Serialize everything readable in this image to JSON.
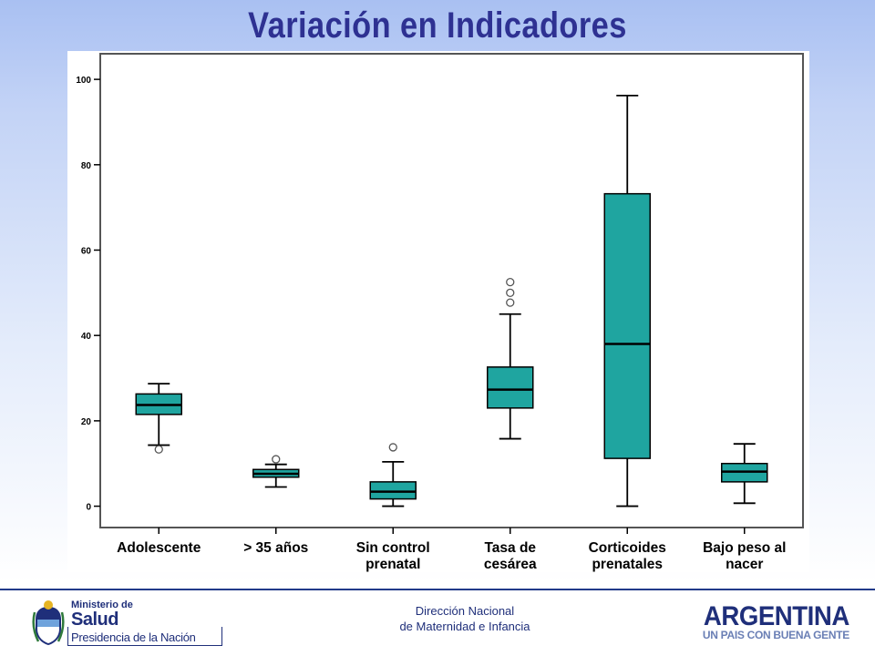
{
  "slide": {
    "title": "Variación en Indicadores",
    "footer_line1": "Dirección Nacional",
    "footer_line2": "de Maternidad e Infancia"
  },
  "logos": {
    "ministry_line1": "Ministerio de",
    "ministry_line2": "Salud",
    "ministry_line3": "Presidencia de la Nación",
    "argentina_word": "ARGENTINA",
    "argentina_slogan": "UN PAIS CON BUENA GENTE"
  },
  "colors": {
    "title": "#2e3192",
    "box_fill": "#1fa5a0",
    "box_stroke": "#000000",
    "footer_text": "#1f2f7a"
  },
  "chart_data": {
    "type": "boxplot",
    "title": "",
    "xlabel": "",
    "ylabel": "",
    "ylim": [
      -5,
      106
    ],
    "yticks": [
      0,
      20,
      40,
      60,
      80,
      100
    ],
    "grid": false,
    "categories": [
      {
        "label": [
          "Adolescente"
        ],
        "min": 14.3,
        "q1": 21.5,
        "median": 23.7,
        "q3": 26.3,
        "max": 28.7,
        "outliers": [
          13.3
        ]
      },
      {
        "label": [
          "> 35 años"
        ],
        "min": 4.5,
        "q1": 6.8,
        "median": 7.6,
        "q3": 8.6,
        "max": 9.8,
        "outliers": [
          11.0
        ]
      },
      {
        "label": [
          "Sin control",
          "prenatal"
        ],
        "min": 0.0,
        "q1": 1.7,
        "median": 3.4,
        "q3": 5.7,
        "max": 10.4,
        "outliers": [
          13.8
        ]
      },
      {
        "label": [
          "Tasa de",
          "cesárea"
        ],
        "min": 15.8,
        "q1": 23.0,
        "median": 27.3,
        "q3": 32.6,
        "max": 45.0,
        "outliers": [
          47.7,
          50.0,
          52.5
        ]
      },
      {
        "label": [
          "Corticoides",
          "prenatales"
        ],
        "min": 0.0,
        "q1": 11.2,
        "median": 38.0,
        "q3": 73.2,
        "max": 96.2,
        "outliers": []
      },
      {
        "label": [
          "Bajo peso al",
          "nacer"
        ],
        "min": 0.7,
        "q1": 5.7,
        "median": 8.1,
        "q3": 10.0,
        "max": 14.6,
        "outliers": []
      }
    ]
  }
}
